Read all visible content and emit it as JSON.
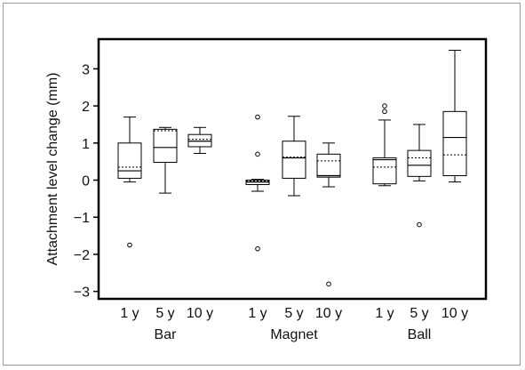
{
  "chart_data": {
    "type": "box",
    "title": "",
    "xlabel": "",
    "ylabel": "Attachment level change (mm)",
    "ylim": [
      -3.2,
      3.8
    ],
    "yticks": [
      -3,
      -2,
      -1,
      0,
      1,
      2,
      3
    ],
    "grid": false,
    "legend": "none",
    "mean_line_style": "dashed",
    "median_line_style": "solid",
    "groups": [
      {
        "name": "Bar",
        "boxes": [
          {
            "label": "1 y",
            "whisker_low": -0.05,
            "q1": 0.05,
            "median": 0.25,
            "mean": 0.35,
            "q3": 1.0,
            "whisker_high": 1.7,
            "outliers": [
              -1.75
            ]
          },
          {
            "label": "5 y",
            "whisker_low": -0.35,
            "q1": 0.48,
            "median": 0.88,
            "mean": 1.33,
            "q3": 1.37,
            "whisker_high": 1.42,
            "outliers": []
          },
          {
            "label": "10 y",
            "whisker_low": 0.72,
            "q1": 0.9,
            "median": 1.05,
            "mean": 1.1,
            "q3": 1.23,
            "whisker_high": 1.42,
            "outliers": []
          }
        ]
      },
      {
        "name": "Magnet",
        "boxes": [
          {
            "label": "1 y",
            "whisker_low": -0.3,
            "q1": -0.12,
            "median": -0.05,
            "mean": -0.02,
            "q3": 0.0,
            "whisker_high": 0.02,
            "outliers": [
              1.7,
              0.7,
              -1.85
            ]
          },
          {
            "label": "5 y",
            "whisker_low": -0.42,
            "q1": 0.05,
            "median": 0.6,
            "mean": 0.62,
            "q3": 1.05,
            "whisker_high": 1.72,
            "outliers": []
          },
          {
            "label": "10 y",
            "whisker_low": -0.18,
            "q1": 0.08,
            "median": 0.12,
            "mean": 0.52,
            "q3": 0.7,
            "whisker_high": 1.0,
            "outliers": [
              -2.8
            ]
          }
        ]
      },
      {
        "name": "Ball",
        "boxes": [
          {
            "label": "1 y",
            "whisker_low": -0.15,
            "q1": -0.1,
            "median": 0.55,
            "mean": 0.35,
            "q3": 0.6,
            "whisker_high": 1.62,
            "outliers": [
              1.85,
              2.0
            ]
          },
          {
            "label": "5 y",
            "whisker_low": -0.02,
            "q1": 0.1,
            "median": 0.4,
            "mean": 0.6,
            "q3": 0.8,
            "whisker_high": 1.5,
            "outliers": [
              -1.2
            ]
          },
          {
            "label": "10 y",
            "whisker_low": -0.05,
            "q1": 0.12,
            "median": 1.15,
            "mean": 0.68,
            "q3": 1.85,
            "whisker_high": 3.5,
            "outliers": []
          }
        ]
      }
    ]
  }
}
